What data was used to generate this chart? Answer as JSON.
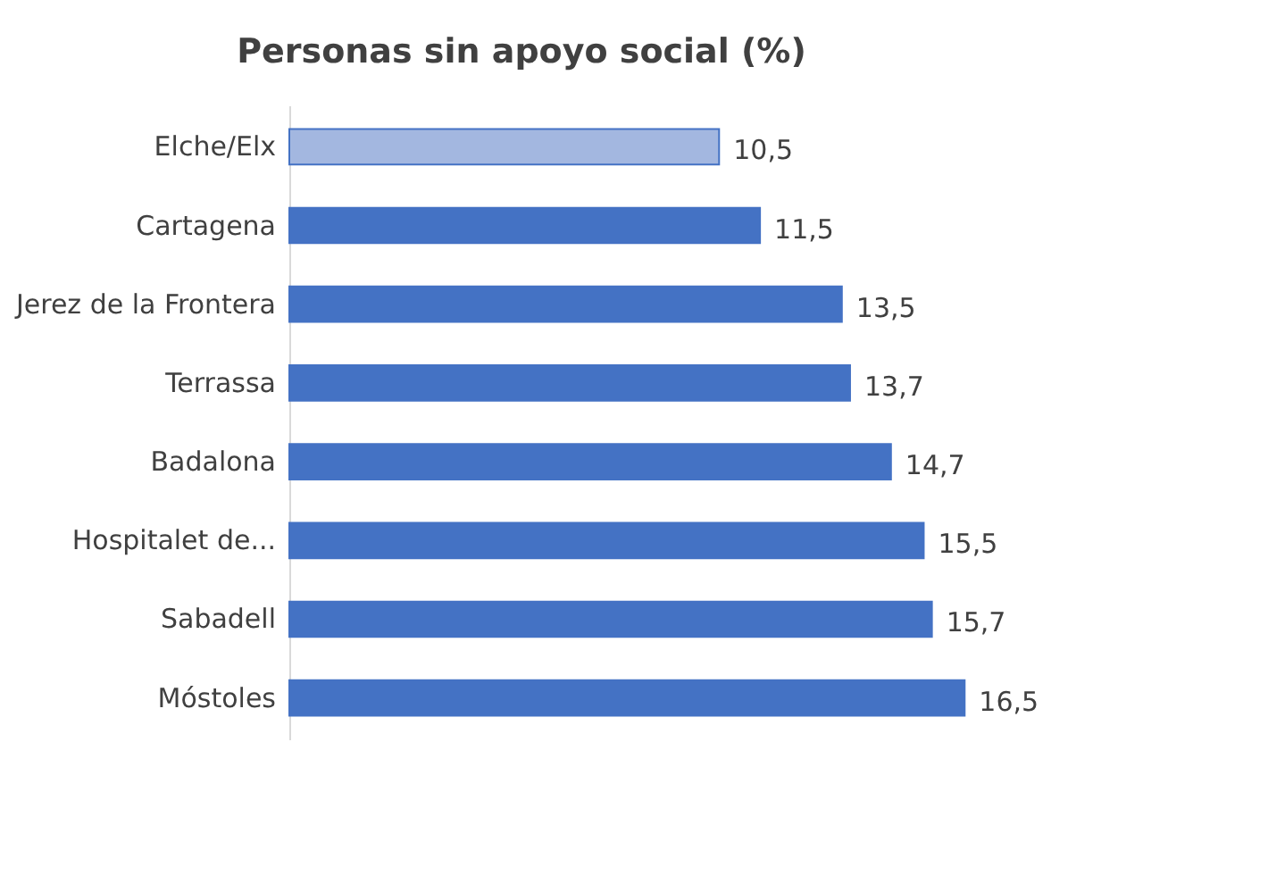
{
  "chart_data": {
    "type": "bar",
    "orientation": "horizontal",
    "title": "Personas sin apoyo social (%)",
    "categories": [
      "Elche/Elx",
      "Cartagena",
      "Jerez de la Frontera",
      "Terrassa",
      "Badalona",
      "Hospitalet de...",
      "Sabadell",
      "Móstoles"
    ],
    "values": [
      10.5,
      11.5,
      13.5,
      13.7,
      14.7,
      15.5,
      15.7,
      16.5
    ],
    "colors": [
      "#a3b7e0",
      "#4472c4",
      "#4472c4",
      "#4472c4",
      "#4472c4",
      "#4472c4",
      "#4472c4",
      "#4472c4"
    ],
    "value_labels": [
      "10,5",
      "11,5",
      "13,5",
      "13,7",
      "14,7",
      "15,5",
      "15,7",
      "16,5"
    ]
  }
}
